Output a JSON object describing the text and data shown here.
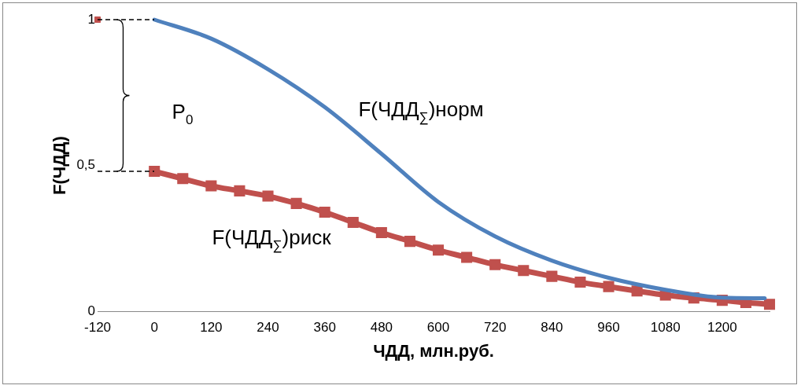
{
  "chart_data": {
    "type": "line",
    "xlabel": "ЧДД, млн.руб.",
    "ylabel": "F(ЧДД)",
    "xlim": [
      -120,
      1300
    ],
    "xticks": [
      -120,
      0,
      120,
      240,
      360,
      480,
      600,
      720,
      840,
      960,
      1080,
      1200
    ],
    "ylim": [
      0,
      1
    ],
    "yticks": [
      0,
      {
        "value": 0.5,
        "label": "0,5"
      },
      1
    ],
    "grid": false,
    "legend": false,
    "series": [
      {
        "color": "#4f81bd",
        "marker": "none",
        "x": [
          0,
          120,
          240,
          360,
          480,
          600,
          720,
          840,
          960,
          1080,
          1200,
          1290
        ],
        "values": [
          1.0,
          0.935,
          0.83,
          0.7,
          0.54,
          0.375,
          0.257,
          0.174,
          0.115,
          0.074,
          0.047,
          0.045
        ]
      },
      {
        "color": "#c0504d",
        "marker": "square",
        "x": [
          0,
          60,
          120,
          180,
          240,
          300,
          360,
          420,
          480,
          540,
          600,
          660,
          720,
          780,
          840,
          900,
          960,
          1020,
          1080,
          1140,
          1200,
          1250,
          1300
        ],
        "values": [
          0.48,
          0.455,
          0.43,
          0.413,
          0.395,
          0.37,
          0.34,
          0.305,
          0.27,
          0.24,
          0.21,
          0.185,
          0.16,
          0.14,
          0.12,
          0.1,
          0.085,
          0.07,
          0.056,
          0.046,
          0.038,
          0.03,
          0.024
        ]
      },
      {
        "type": "scatter",
        "color": "#c0504d",
        "marker": "square",
        "x": [
          -120
        ],
        "values": [
          1
        ]
      }
    ],
    "annotations": [
      "F(ЧДД$_{∑}$)норм",
      "F(ЧДД$_{∑}$)риск",
      "P$_{0}$"
    ]
  }
}
